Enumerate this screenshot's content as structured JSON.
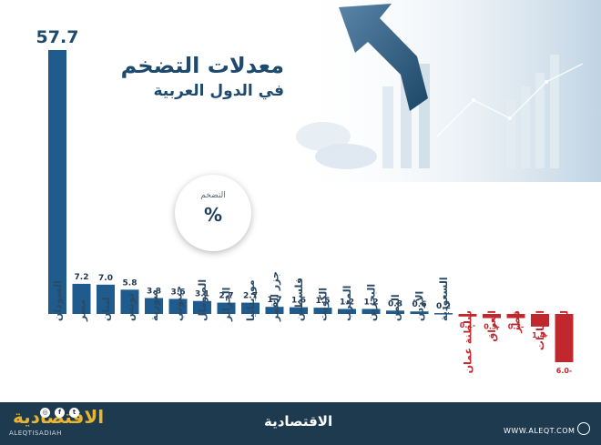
{
  "title": {
    "line1": "معدلات التضخم",
    "line2": "في الدول العربية"
  },
  "badge": {
    "label": "التضخم",
    "symbol": "%"
  },
  "chart_data": {
    "type": "bar",
    "title": "معدلات التضخم في الدول العربية",
    "ylabel": "التضخم %",
    "categories": [
      "السودان",
      "مصر",
      "لبنان",
      "تونس",
      "سورية",
      "جيبوتي",
      "الصومال",
      "الجزائر",
      "موريتانيا",
      "جزر القمر",
      "فلسطين",
      "الكويت",
      "المغرب",
      "البحرين",
      "اليمن",
      "الأردن",
      "السعودية",
      "سلطنة عمان",
      "العراق",
      "قطر",
      "الإمارات",
      "ليبيا"
    ],
    "values": [
      57.7,
      7.2,
      7.0,
      5.8,
      3.8,
      3.6,
      3.1,
      2.7,
      2.7,
      1.7,
      1.6,
      1.5,
      1.2,
      1.2,
      0.8,
      0.6,
      0.2,
      -0.1,
      -0.3,
      -0.3,
      -1.4,
      -6.0
    ],
    "value_labels": [
      "57.7",
      "7.2",
      "7.0",
      "5.8",
      "3.8",
      "3.6",
      "3.1",
      "2.7",
      "2.7",
      "1.7",
      "1.6",
      "1.5",
      "1.2",
      "1.2",
      "0.8",
      "0.6",
      "0.2",
      "0.1-",
      "0.3-",
      "0.3-",
      "1.4-",
      "6.0-"
    ],
    "colors": {
      "positive": "#1f5b8c",
      "negative": "#c0282d"
    },
    "grid": false,
    "legend": "none"
  },
  "footer": {
    "brand_left": "الاقتصادية",
    "handle": "ALEQTISADIAH",
    "brand_center": "الاقتصادية",
    "website": "WWW.ALEQT.COM"
  },
  "colors": {
    "footer_bg": "#1e3a4e",
    "brand_gold": "#e8b431",
    "title": "#1e4a6e"
  },
  "icons": [
    "twitter-icon",
    "facebook-icon",
    "instagram-icon",
    "globe-icon",
    "arrow-up-graphic"
  ]
}
